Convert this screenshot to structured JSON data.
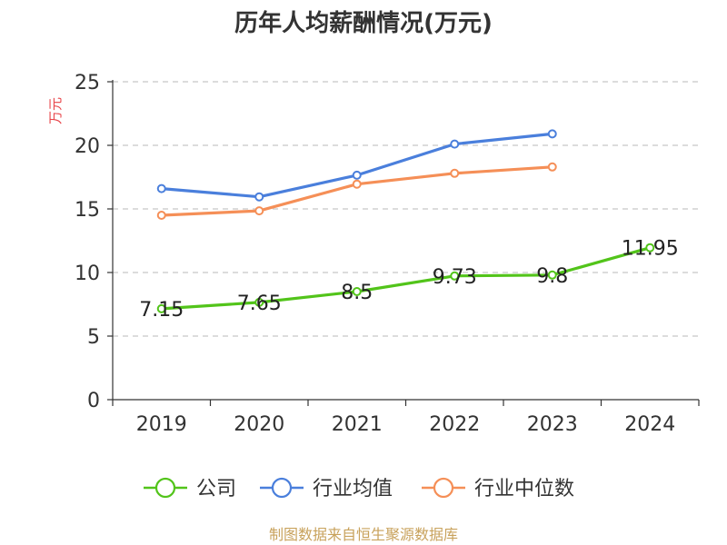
{
  "chart_data": {
    "type": "line",
    "title": "历年人均薪酬情况(万元)",
    "ylabel": "万元",
    "ylim": [
      0,
      25
    ],
    "yticks": [
      0,
      5,
      10,
      15,
      20,
      25
    ],
    "categories": [
      "2019",
      "2020",
      "2021",
      "2022",
      "2023",
      "2024"
    ],
    "grid": true,
    "legend_position": "bottom",
    "series": [
      {
        "name": "公司",
        "color": "#52c41a",
        "values": [
          7.15,
          7.65,
          8.5,
          9.73,
          9.8,
          11.95
        ],
        "labels": [
          "7.15",
          "7.65",
          "8.5",
          "9.73",
          "9.8",
          "11.95"
        ]
      },
      {
        "name": "行业均值",
        "color": "#4a7fdc",
        "values": [
          16.6,
          15.95,
          17.65,
          20.1,
          20.9,
          null
        ]
      },
      {
        "name": "行业中位数",
        "color": "#f58f57",
        "values": [
          14.5,
          14.85,
          16.95,
          17.8,
          18.3,
          null
        ]
      }
    ]
  },
  "colors": {
    "axis_label": "#e8454a",
    "source": "#c8a25c"
  },
  "source_text": "制图数据来自恒生聚源数据库"
}
